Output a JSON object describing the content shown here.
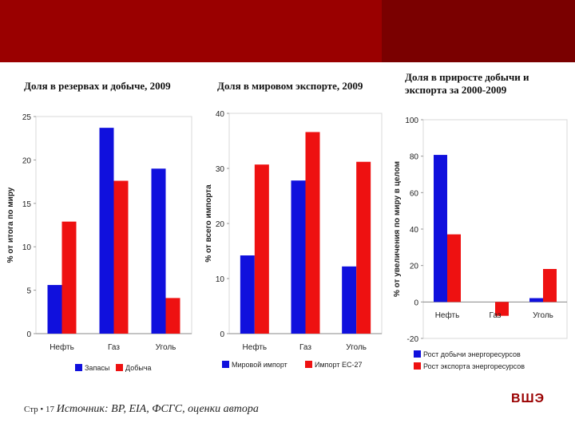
{
  "colors": {
    "banner": "#9a0000",
    "blue": "#1010dd",
    "red": "#ee1111"
  },
  "footer": {
    "page_label": "Стр •",
    "page_number": "17",
    "source": "Источник: BP, EIA, ФСГС, оценки автора"
  },
  "logo": "ВШЭ",
  "chart_data": [
    {
      "type": "bar",
      "title": "Доля в резервах и добыче, 2009",
      "ylabel": "% от итога по миру",
      "categories": [
        "Нефть",
        "Газ",
        "Уголь"
      ],
      "ylim": [
        0,
        25
      ],
      "yticks": [
        "0",
        "5",
        "10",
        "15",
        "20",
        "25"
      ],
      "series": [
        {
          "name": "Запасы",
          "color": "#1010dd",
          "values": [
            5.6,
            23.7,
            19.0
          ]
        },
        {
          "name": "Добыча",
          "color": "#ee1111",
          "values": [
            12.9,
            17.6,
            4.1
          ]
        }
      ]
    },
    {
      "type": "bar",
      "title": "Доля в мировом экспорте, 2009",
      "ylabel": "% от всего импорта",
      "categories": [
        "Нефть",
        "Газ",
        "Уголь"
      ],
      "ylim": [
        0,
        40
      ],
      "yticks": [
        "0",
        "10",
        "20",
        "30",
        "40"
      ],
      "series": [
        {
          "name": "Мировой импорт",
          "color": "#1010dd",
          "values": [
            14.2,
            27.8,
            12.2
          ]
        },
        {
          "name": "Импорт ЕС-27",
          "color": "#ee1111",
          "values": [
            30.7,
            36.6,
            31.2
          ]
        }
      ]
    },
    {
      "type": "bar",
      "title": "Доля в приросте добычи и экспорта за 2000-2009",
      "ylabel": "% от увеличения по миру в целом",
      "categories": [
        "Нефть",
        "Газ",
        "Уголь"
      ],
      "ylim": [
        -20,
        100
      ],
      "yticks": [
        "-20",
        "0",
        "20",
        "40",
        "60",
        "80",
        "100"
      ],
      "series": [
        {
          "name": "Рост добычи энергоресурсов",
          "color": "#1010dd",
          "values": [
            80.7,
            0,
            2.1
          ]
        },
        {
          "name": "Рост экспорта энергоресурсов",
          "color": "#ee1111",
          "values": [
            37.1,
            -7.6,
            18.1
          ]
        }
      ]
    }
  ]
}
